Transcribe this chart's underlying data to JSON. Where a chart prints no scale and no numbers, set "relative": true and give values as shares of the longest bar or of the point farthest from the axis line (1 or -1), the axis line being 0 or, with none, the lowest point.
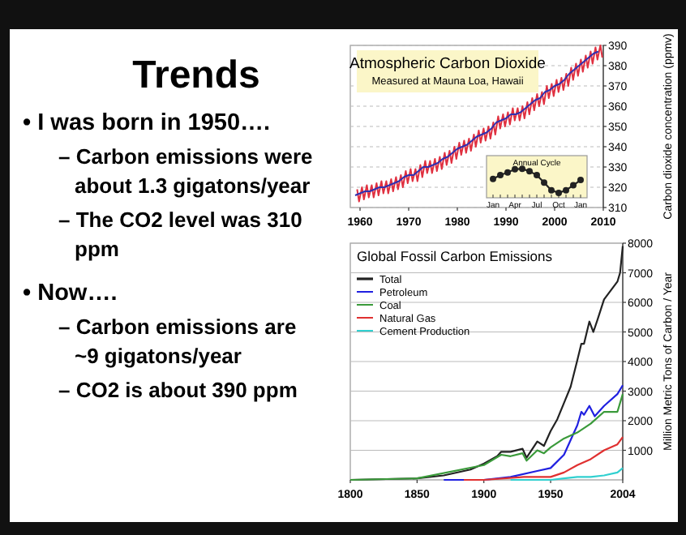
{
  "chart_data": [
    {
      "type": "other",
      "title": "Trends",
      "annotations": [
        "• I was born in 1950….",
        "– Carbon emissions were about 1.3 gigatons/year",
        "– The CO2 level was 310 ppm",
        "• Now….",
        "– Carbon emissions are ~9 gigatons/year",
        "– CO2 is about 390 ppm"
      ]
    },
    {
      "type": "line",
      "title": "Atmospheric Carbon Dioxide",
      "subtitle": "Measured at Mauna Loa, Hawaii",
      "ylabel": "Carbon dioxide concentration (ppmv)",
      "xlim": [
        1958,
        2010
      ],
      "xticks": [
        1960,
        1970,
        1980,
        1990,
        2000,
        2010
      ],
      "ylim": [
        310,
        390
      ],
      "yticks": [
        310,
        320,
        330,
        340,
        350,
        360,
        370,
        380,
        390
      ],
      "grid": "y",
      "series": [
        {
          "color": "#e03040",
          "x": [
            1959.4,
            1959.8,
            1960.4,
            1960.8,
            1961.4,
            1961.8,
            1962.4,
            1962.8,
            1963.4,
            1963.8,
            1964.4,
            1964.8,
            1965.4,
            1965.8,
            1966.4,
            1966.8,
            1967.4,
            1967.8,
            1968.4,
            1968.8,
            1969.4,
            1969.8,
            1970.4,
            1970.8,
            1971.4,
            1971.8,
            1972.4,
            1972.8,
            1973.4,
            1973.8,
            1974.4,
            1974.8,
            1975.4,
            1975.8,
            1976.4,
            1976.8,
            1977.4,
            1977.8,
            1978.4,
            1978.8,
            1979.4,
            1979.8,
            1980.4,
            1980.8,
            1981.4,
            1981.8,
            1982.4,
            1982.8,
            1983.4,
            1983.8,
            1984.4,
            1984.8,
            1985.4,
            1985.8,
            1986.4,
            1986.8,
            1987.4,
            1987.8,
            1988.4,
            1988.8,
            1989.4,
            1989.8,
            1990.4,
            1990.8,
            1991.4,
            1991.8,
            1992.4,
            1992.8,
            1993.4,
            1993.8,
            1994.4,
            1994.8,
            1995.4,
            1995.8,
            1996.4,
            1996.8,
            1997.4,
            1997.8,
            1998.4,
            1998.8,
            1999.4,
            1999.8,
            2000.4,
            2000.8,
            2001.4,
            2001.8,
            2002.4,
            2002.8,
            2003.4,
            2003.8,
            2004.4,
            2004.8,
            2005.4,
            2005.8,
            2006.4,
            2006.8,
            2007.4,
            2007.8,
            2008.4,
            2008.8,
            2009.4,
            2009.8
          ],
          "values": [
            319,
            313,
            320,
            314,
            321,
            315,
            321,
            315,
            322,
            316,
            323,
            317,
            323,
            317,
            324,
            318,
            325,
            319,
            326,
            320,
            328,
            322,
            329,
            323,
            329,
            323,
            331,
            325,
            333,
            327,
            333,
            327,
            334,
            328,
            335,
            329,
            337,
            331,
            338,
            332,
            340,
            334,
            342,
            336,
            343,
            337,
            344,
            338,
            346,
            340,
            348,
            342,
            349,
            343,
            350,
            344,
            352,
            346,
            355,
            349,
            356,
            350,
            357,
            351,
            359,
            353,
            359,
            353,
            360,
            354,
            362,
            356,
            364,
            358,
            366,
            360,
            367,
            361,
            370,
            364,
            371,
            365,
            373,
            367,
            374,
            368,
            376,
            370,
            379,
            373,
            381,
            375,
            383,
            377,
            385,
            379,
            387,
            381,
            389,
            383,
            390,
            384
          ]
        },
        {
          "color": "#3030b0",
          "x": [
            1959,
            1960,
            1961,
            1962,
            1963,
            1964,
            1965,
            1966,
            1967,
            1968,
            1969,
            1970,
            1971,
            1972,
            1973,
            1974,
            1975,
            1976,
            1977,
            1978,
            1979,
            1980,
            1981,
            1982,
            1983,
            1984,
            1985,
            1986,
            1987,
            1988,
            1989,
            1990,
            1991,
            1992,
            1993,
            1994,
            1995,
            1996,
            1997,
            1998,
            1999,
            2000,
            2001,
            2002,
            2003,
            2004,
            2005,
            2006,
            2007,
            2008,
            2009
          ],
          "values": [
            316,
            317,
            318,
            318,
            319,
            320,
            320,
            321,
            322,
            323,
            325,
            326,
            326,
            328,
            330,
            330,
            331,
            332,
            334,
            335,
            337,
            339,
            340,
            341,
            343,
            345,
            346,
            347,
            349,
            352,
            353,
            354,
            356,
            356,
            357,
            359,
            361,
            363,
            364,
            367,
            368,
            370,
            371,
            373,
            376,
            378,
            380,
            382,
            384,
            386,
            387
          ]
        }
      ]
    },
    {
      "type": "line",
      "title": "Annual Cycle",
      "relative": true,
      "marker": "circle",
      "color": "#222222",
      "categories": [
        "Jan",
        null,
        null,
        "Apr",
        null,
        null,
        "Jul",
        null,
        null,
        "Oct",
        null,
        null,
        "Jan"
      ],
      "values": [
        0.65,
        0.78,
        0.87,
        0.98,
        1,
        0.91,
        0.78,
        0.52,
        0.26,
        0.17,
        0.26,
        0.43,
        0.61
      ]
    },
    {
      "type": "line",
      "title": "Global Fossil Carbon Emissions",
      "ylabel": "Million Metric Tons of Carbon / Year",
      "xlim": [
        1800,
        2004
      ],
      "xticks": [
        1800,
        1850,
        1900,
        1950,
        2004
      ],
      "ylim": [
        0,
        8000
      ],
      "yticks": [
        1000,
        2000,
        3000,
        4000,
        5000,
        6000,
        7000,
        8000
      ],
      "grid": "y",
      "legend": "top left",
      "series": [
        {
          "name": "Total",
          "color": "#222222",
          "x": [
            1800,
            1850,
            1870,
            1890,
            1900,
            1910,
            1913,
            1920,
            1929,
            1932,
            1940,
            1945,
            1950,
            1955,
            1960,
            1965,
            1970,
            1973,
            1975,
            1979,
            1982,
            1985,
            1990,
            1995,
            2000,
            2002,
            2004
          ],
          "values": [
            0,
            50,
            150,
            350,
            550,
            800,
            950,
            950,
            1050,
            750,
            1300,
            1150,
            1650,
            2050,
            2600,
            3150,
            4050,
            4600,
            4600,
            5350,
            5000,
            5400,
            6100,
            6400,
            6700,
            7000,
            7900
          ]
        },
        {
          "name": "Petroleum",
          "color": "#2020e0",
          "x": [
            1870,
            1900,
            1920,
            1940,
            1950,
            1960,
            1970,
            1973,
            1975,
            1979,
            1983,
            1990,
            2000,
            2004
          ],
          "values": [
            0,
            0,
            100,
            300,
            400,
            850,
            1850,
            2300,
            2200,
            2500,
            2150,
            2500,
            2900,
            3200
          ]
        },
        {
          "name": "Coal",
          "color": "#3a9a3a",
          "x": [
            1800,
            1850,
            1900,
            1913,
            1920,
            1929,
            1932,
            1940,
            1945,
            1950,
            1960,
            1970,
            1980,
            1990,
            2000,
            2004
          ],
          "values": [
            0,
            50,
            500,
            850,
            800,
            900,
            650,
            1000,
            900,
            1100,
            1400,
            1600,
            1900,
            2300,
            2300,
            2900
          ]
        },
        {
          "name": "Natural Gas",
          "color": "#e03030",
          "x": [
            1885,
            1900,
            1930,
            1950,
            1960,
            1970,
            1980,
            1990,
            2000,
            2004
          ],
          "values": [
            0,
            0,
            100,
            100,
            250,
            500,
            700,
            1000,
            1200,
            1450
          ]
        },
        {
          "name": "Cement Production",
          "color": "#30d0d0",
          "x": [
            1920,
            1930,
            1950,
            1960,
            1970,
            1980,
            1990,
            2000,
            2004
          ],
          "values": [
            0,
            0,
            0,
            50,
            100,
            100,
            150,
            250,
            400
          ]
        }
      ]
    }
  ]
}
